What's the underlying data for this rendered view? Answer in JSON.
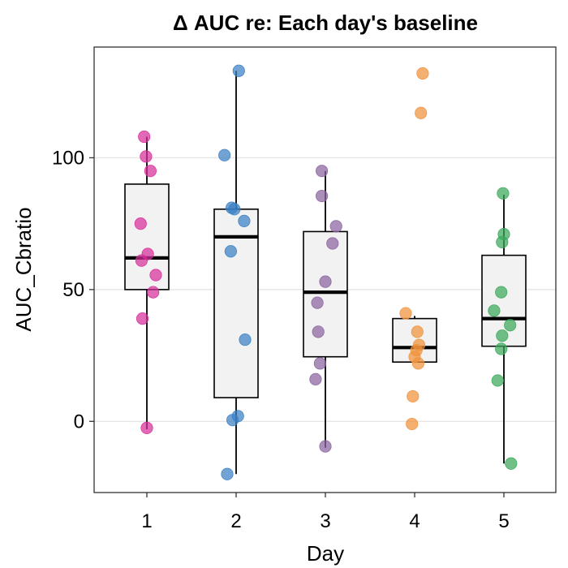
{
  "chart_data": {
    "type": "box",
    "title": "Δ AUC re: Each day's baseline",
    "xlabel": "Day",
    "ylabel": "AUC_Cbratio",
    "categories": [
      "1",
      "2",
      "3",
      "4",
      "5"
    ],
    "ylim": [
      -27,
      142
    ],
    "yticks": [
      0,
      50,
      100
    ],
    "ytick_labels": [
      "0",
      "50",
      "100"
    ],
    "grid": true,
    "boxes": [
      {
        "day": "1",
        "whisker_low": -3,
        "q1": 50,
        "median": 62,
        "q3": 90,
        "whisker_high": 108,
        "color": "#d62f9a",
        "points": [
          {
            "x": 0.97,
            "y": 108
          },
          {
            "x": 0.99,
            "y": 100.5
          },
          {
            "x": 1.04,
            "y": 95
          },
          {
            "x": 0.93,
            "y": 75
          },
          {
            "x": 1.01,
            "y": 63.5
          },
          {
            "x": 0.94,
            "y": 61
          },
          {
            "x": 1.1,
            "y": 55.5
          },
          {
            "x": 1.07,
            "y": 49
          },
          {
            "x": 0.95,
            "y": 39
          },
          {
            "x": 1.0,
            "y": -2.5
          }
        ]
      },
      {
        "day": "2",
        "whisker_low": -20,
        "q1": 9,
        "median": 70,
        "q3": 80.5,
        "whisker_high": 133,
        "color": "#3a7fc4",
        "points": [
          {
            "x": 2.03,
            "y": 133
          },
          {
            "x": 1.87,
            "y": 101
          },
          {
            "x": 1.95,
            "y": 81
          },
          {
            "x": 1.98,
            "y": 80.5
          },
          {
            "x": 2.09,
            "y": 76
          },
          {
            "x": 1.94,
            "y": 64.5
          },
          {
            "x": 2.1,
            "y": 31
          },
          {
            "x": 2.02,
            "y": 2
          },
          {
            "x": 1.96,
            "y": 0.5
          },
          {
            "x": 1.9,
            "y": -20
          }
        ]
      },
      {
        "day": "3",
        "whisker_low": -10,
        "q1": 24.5,
        "median": 49,
        "q3": 72,
        "whisker_high": 95,
        "color": "#8a64a0",
        "points": [
          {
            "x": 2.96,
            "y": 95
          },
          {
            "x": 2.96,
            "y": 85.5
          },
          {
            "x": 3.12,
            "y": 74
          },
          {
            "x": 3.08,
            "y": 67.5
          },
          {
            "x": 3.0,
            "y": 53
          },
          {
            "x": 2.91,
            "y": 45
          },
          {
            "x": 2.92,
            "y": 34
          },
          {
            "x": 2.94,
            "y": 22
          },
          {
            "x": 2.89,
            "y": 16
          },
          {
            "x": 3.0,
            "y": -9.5
          }
        ]
      },
      {
        "day": "4",
        "whisker_low": 22.5,
        "q1": 22.5,
        "median": 28,
        "q3": 39,
        "whisker_high": 40,
        "color": "#f0923a",
        "points": [
          {
            "x": 4.09,
            "y": 132
          },
          {
            "x": 4.07,
            "y": 117
          },
          {
            "x": 3.9,
            "y": 41
          },
          {
            "x": 4.03,
            "y": 34
          },
          {
            "x": 4.05,
            "y": 29
          },
          {
            "x": 4.02,
            "y": 27
          },
          {
            "x": 4.0,
            "y": 24.5
          },
          {
            "x": 4.04,
            "y": 22
          },
          {
            "x": 3.98,
            "y": 9.5
          },
          {
            "x": 3.97,
            "y": -1
          }
        ]
      },
      {
        "day": "5",
        "whisker_low": -16,
        "q1": 28.5,
        "median": 39,
        "q3": 63,
        "whisker_high": 86,
        "color": "#3aa85a",
        "points": [
          {
            "x": 4.99,
            "y": 86.5
          },
          {
            "x": 5.0,
            "y": 71
          },
          {
            "x": 4.98,
            "y": 68
          },
          {
            "x": 4.97,
            "y": 49
          },
          {
            "x": 4.89,
            "y": 42
          },
          {
            "x": 5.07,
            "y": 36.5
          },
          {
            "x": 4.98,
            "y": 32.5
          },
          {
            "x": 4.97,
            "y": 27.5
          },
          {
            "x": 4.93,
            "y": 15.5
          },
          {
            "x": 5.08,
            "y": -16
          }
        ]
      }
    ]
  }
}
